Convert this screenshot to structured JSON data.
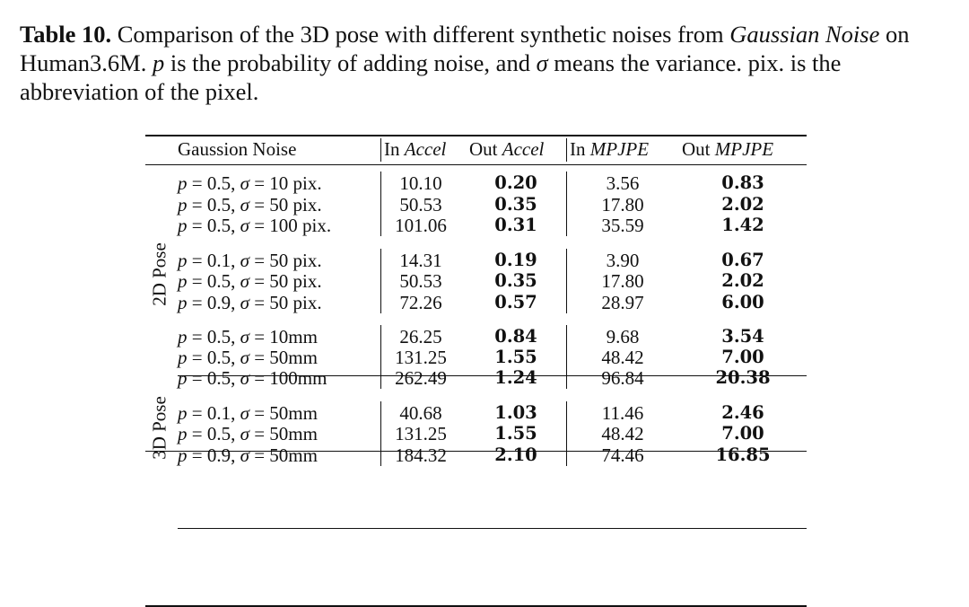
{
  "caption": {
    "label": "Table 10.",
    "part1": " Comparison of the 3D pose with different synthetic noises from ",
    "italic1": "Gaussian Noise",
    "part2": " on Human3.6M. ",
    "p_sym": "p",
    "part3": " is the probability of adding noise, and ",
    "sigma_sym": "σ",
    "part4": " means the variance. pix. is the abbreviation of the pixel."
  },
  "headers": {
    "col0": "Gaussion Noise",
    "col1_a": "In ",
    "col1_b": "Accel",
    "col2_a": "Out ",
    "col2_b": "Accel",
    "col3_a": "In ",
    "col3_b": "MPJPE",
    "col4_a": "Out ",
    "col4_b": "MPJPE"
  },
  "groups": [
    {
      "label": "2D Pose"
    },
    {
      "label": "3D Pose"
    }
  ],
  "rows": [
    {
      "p": "0.5",
      "sigma": "10 pix.",
      "in_accel": "10.10",
      "out_accel": "0.20",
      "in_mpjpe": "3.56",
      "out_mpjpe": "0.83"
    },
    {
      "p": "0.5",
      "sigma": "50 pix.",
      "in_accel": "50.53",
      "out_accel": "0.35",
      "in_mpjpe": "17.80",
      "out_mpjpe": "2.02"
    },
    {
      "p": "0.5",
      "sigma": "100 pix.",
      "in_accel": "101.06",
      "out_accel": "0.31",
      "in_mpjpe": "35.59",
      "out_mpjpe": "1.42"
    },
    {
      "p": "0.1",
      "sigma": "50 pix.",
      "in_accel": "14.31",
      "out_accel": "0.19",
      "in_mpjpe": "3.90",
      "out_mpjpe": "0.67"
    },
    {
      "p": "0.5",
      "sigma": "50 pix.",
      "in_accel": "50.53",
      "out_accel": "0.35",
      "in_mpjpe": "17.80",
      "out_mpjpe": "2.02"
    },
    {
      "p": "0.9",
      "sigma": "50 pix.",
      "in_accel": "72.26",
      "out_accel": "0.57",
      "in_mpjpe": "28.97",
      "out_mpjpe": "6.00"
    },
    {
      "p": "0.5",
      "sigma": "10mm",
      "in_accel": "26.25",
      "out_accel": "0.84",
      "in_mpjpe": "9.68",
      "out_mpjpe": "3.54"
    },
    {
      "p": "0.5",
      "sigma": "50mm",
      "in_accel": "131.25",
      "out_accel": "1.55",
      "in_mpjpe": "48.42",
      "out_mpjpe": "7.00"
    },
    {
      "p": "0.5",
      "sigma": "100mm",
      "in_accel": "262.49",
      "out_accel": "1.24",
      "in_mpjpe": "96.84",
      "out_mpjpe": "20.38"
    },
    {
      "p": "0.1",
      "sigma": "50mm",
      "in_accel": "40.68",
      "out_accel": "1.03",
      "in_mpjpe": "11.46",
      "out_mpjpe": "2.46"
    },
    {
      "p": "0.5",
      "sigma": "50mm",
      "in_accel": "131.25",
      "out_accel": "1.55",
      "in_mpjpe": "48.42",
      "out_mpjpe": "7.00"
    },
    {
      "p": "0.9",
      "sigma": "50mm",
      "in_accel": "184.32",
      "out_accel": "2.10",
      "in_mpjpe": "74.46",
      "out_mpjpe": "16.85"
    }
  ]
}
